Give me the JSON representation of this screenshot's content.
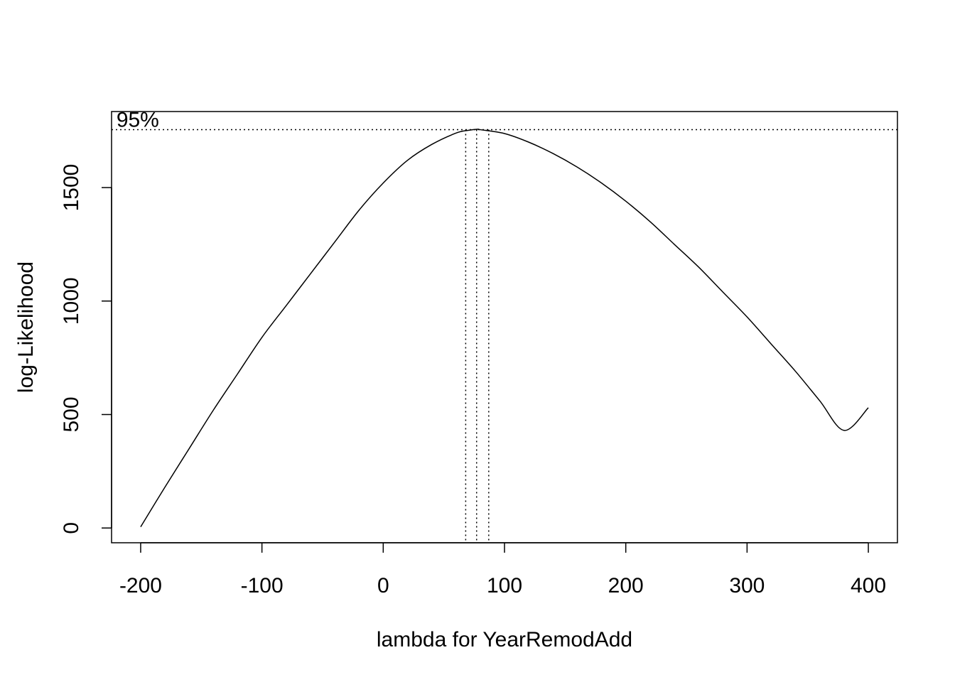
{
  "chart_data": {
    "type": "line",
    "title": "",
    "xlabel": "lambda for YearRemodAdd",
    "ylabel": "log-Likelihood",
    "xlim": [
      -224,
      424
    ],
    "ylim": [
      -65,
      1835
    ],
    "x_ticks": [
      -200,
      -100,
      0,
      100,
      200,
      300,
      400
    ],
    "x_tick_labels": [
      "-200",
      "-100",
      "0",
      "100",
      "200",
      "300",
      "400"
    ],
    "y_ticks": [
      0,
      500,
      1000,
      1500
    ],
    "y_tick_labels": [
      "0",
      "500",
      "1000",
      "1500"
    ],
    "grid": false,
    "series": [
      {
        "x": [
          -200,
          -180,
          -160,
          -140,
          -120,
          -100,
          -80,
          -60,
          -40,
          -20,
          0,
          20,
          40,
          60,
          70,
          78,
          80,
          100,
          120,
          140,
          160,
          180,
          200,
          220,
          240,
          260,
          280,
          300,
          320,
          340,
          360,
          380,
          400
        ],
        "y": [
          5,
          180,
          350,
          520,
          680,
          840,
          980,
          1120,
          1260,
          1400,
          1520,
          1620,
          1690,
          1740,
          1752,
          1757,
          1755,
          1738,
          1700,
          1650,
          1590,
          1520,
          1440,
          1350,
          1250,
          1150,
          1040,
          930,
          810,
          690,
          560,
          430,
          530
        ]
      }
    ],
    "ci_line": {
      "y": 1755,
      "label": "95%"
    },
    "vlines": [
      68,
      77,
      87
    ]
  }
}
